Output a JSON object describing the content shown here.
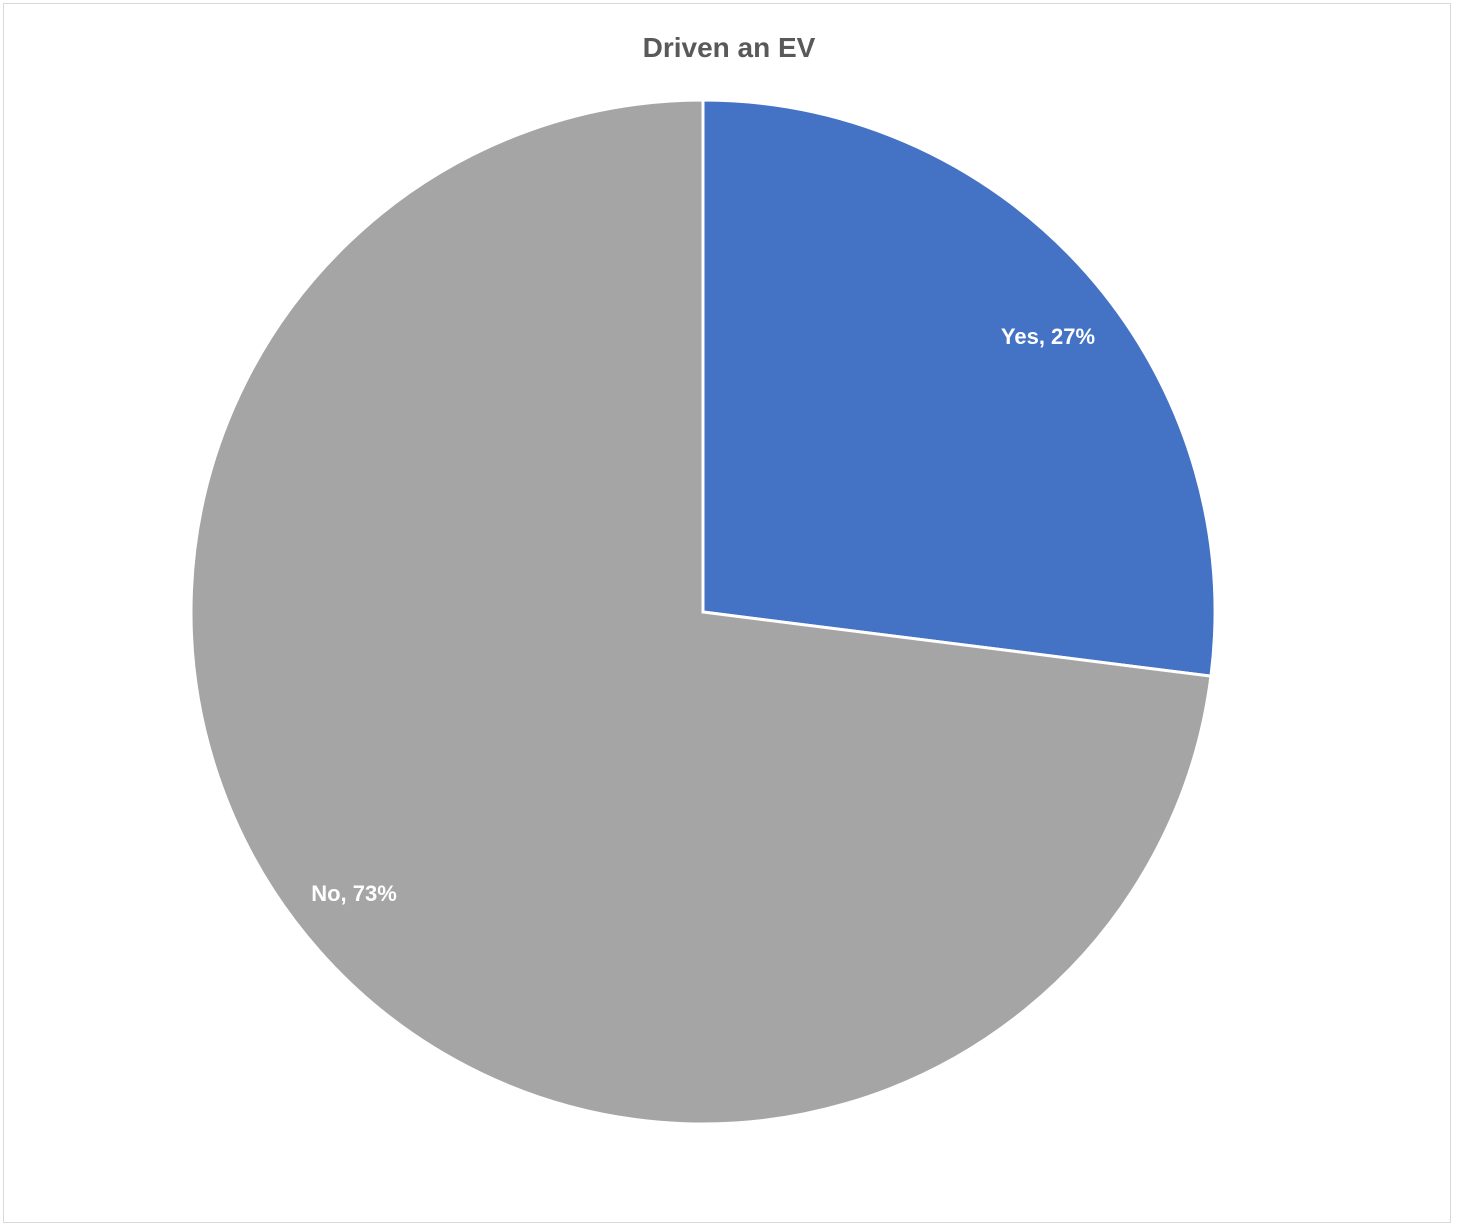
{
  "chart_data": {
    "type": "pie",
    "title": "Driven an EV",
    "categories": [
      "Yes",
      "No"
    ],
    "values": [
      27,
      73
    ],
    "unit": "%",
    "colors": [
      "#4472C4",
      "#A5A5A5"
    ],
    "data_labels": [
      "Yes, 27%",
      "No, 73%"
    ],
    "start_angle": "12 o'clock",
    "direction": "clockwise",
    "legend": "none"
  }
}
